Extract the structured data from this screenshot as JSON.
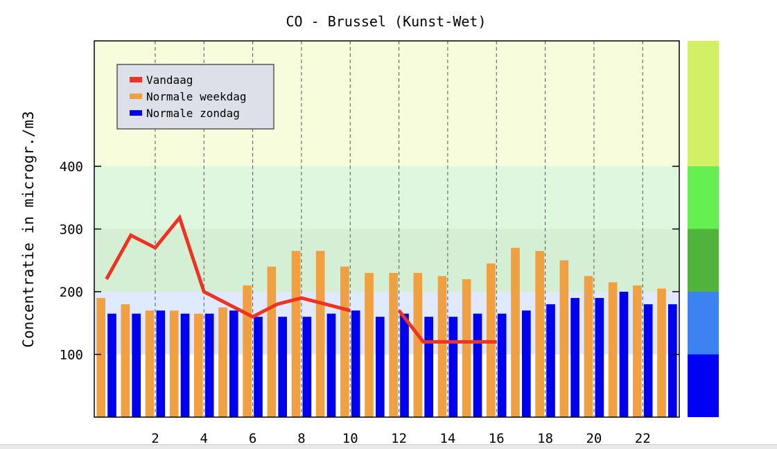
{
  "chart_data": {
    "type": "bar",
    "title": "CO - Brussel (Kunst-Wet)",
    "ylabel": "Concentratie in microgr./m3",
    "xlabel": "",
    "x_hours": [
      0,
      1,
      2,
      3,
      4,
      5,
      6,
      7,
      8,
      9,
      10,
      11,
      12,
      13,
      14,
      15,
      16,
      17,
      18,
      19,
      20,
      21,
      22,
      23
    ],
    "x_tick_labels": [
      "2",
      "4",
      "6",
      "8",
      "10",
      "12",
      "14",
      "16",
      "18",
      "20",
      "22"
    ],
    "x_tick_values": [
      2,
      4,
      6,
      8,
      10,
      12,
      14,
      16,
      18,
      20,
      22
    ],
    "xlim": [
      -0.5,
      23.5
    ],
    "y_tick_labels": [
      "100",
      "200",
      "300",
      "400"
    ],
    "y_tick_values": [
      100,
      200,
      300,
      400
    ],
    "ylim": [
      0,
      600
    ],
    "grid": true,
    "legend_position": "top-left",
    "series": [
      {
        "name": "Normale weekdag",
        "type": "bar",
        "color": "#f0a040",
        "values": [
          190,
          180,
          170,
          170,
          165,
          175,
          210,
          240,
          265,
          265,
          240,
          230,
          230,
          230,
          225,
          220,
          245,
          270,
          265,
          250,
          225,
          215,
          210,
          205
        ]
      },
      {
        "name": "Normale zondag",
        "type": "bar",
        "color": "#0000f0",
        "values": [
          165,
          165,
          170,
          165,
          165,
          170,
          160,
          160,
          160,
          165,
          170,
          160,
          165,
          160,
          160,
          165,
          165,
          170,
          180,
          190,
          190,
          200,
          180,
          180
        ]
      },
      {
        "name": "Vandaag",
        "type": "line",
        "color": "#ee3322",
        "segments": [
          {
            "x": [
              0,
              1,
              2,
              3,
              4,
              5,
              6,
              7,
              8,
              9,
              10
            ],
            "y": [
              220,
              290,
              270,
              318,
              200,
              180,
              160,
              180,
              190,
              180,
              170
            ]
          },
          {
            "x": [
              12,
              13,
              14,
              15,
              16
            ],
            "y": [
              170,
              120,
              120,
              120,
              120
            ]
          }
        ]
      }
    ],
    "background_bands": [
      {
        "from": 0,
        "to": 100,
        "color": "#ffffff"
      },
      {
        "from": 100,
        "to": 200,
        "color": "#dfe9ff"
      },
      {
        "from": 200,
        "to": 300,
        "color": "#d5efd5"
      },
      {
        "from": 300,
        "to": 400,
        "color": "#dff7df"
      },
      {
        "from": 400,
        "to": 600,
        "color": "#f7fcdc"
      }
    ],
    "color_scale": [
      {
        "from": 0,
        "to": 100,
        "color": "#0000f5"
      },
      {
        "from": 100,
        "to": 200,
        "color": "#3c82f0"
      },
      {
        "from": 200,
        "to": 300,
        "color": "#50b43c"
      },
      {
        "from": 300,
        "to": 400,
        "color": "#64f050"
      },
      {
        "from": 400,
        "to": 600,
        "color": "#d2f064"
      }
    ]
  }
}
